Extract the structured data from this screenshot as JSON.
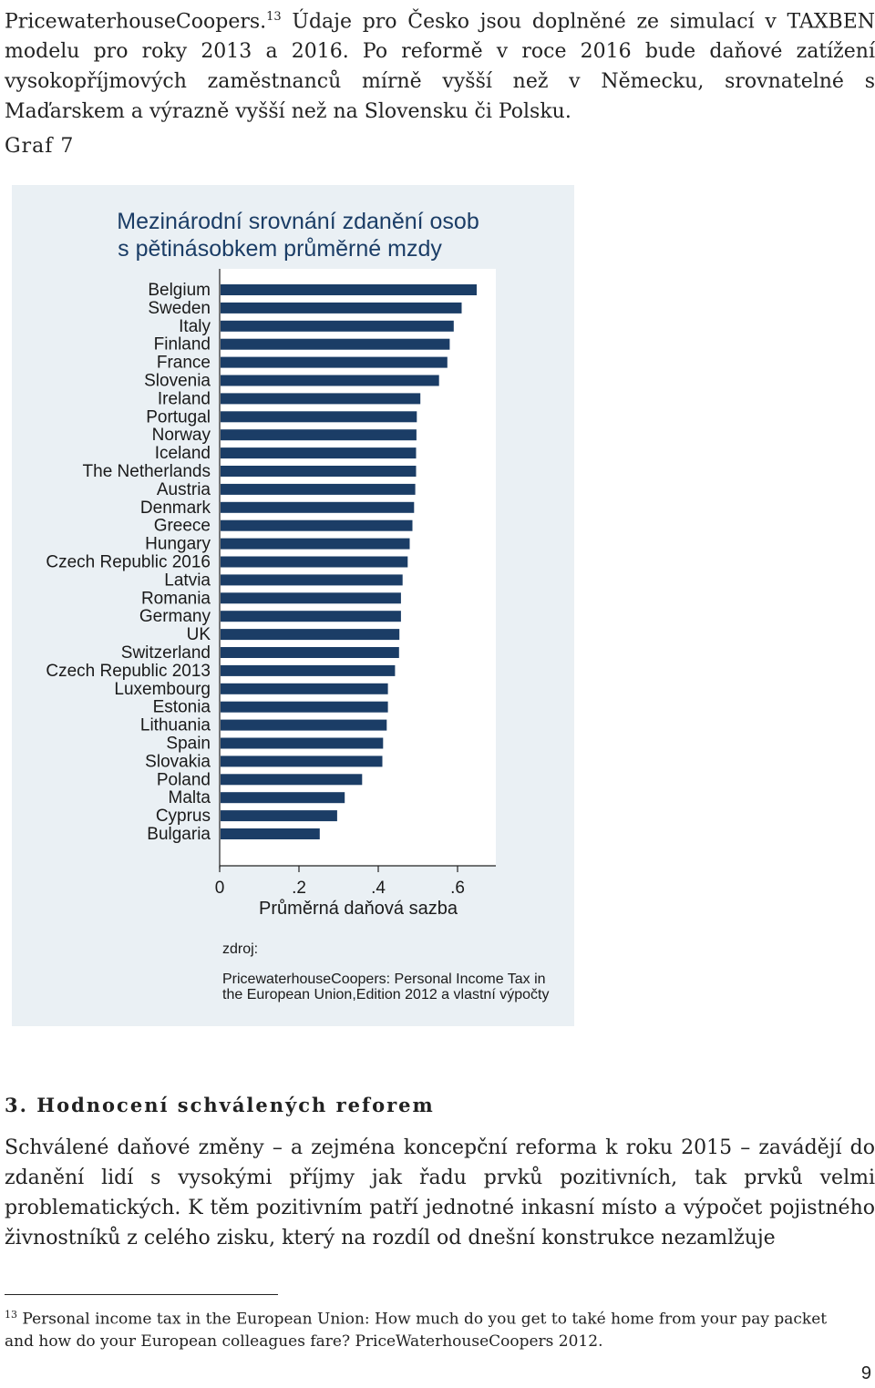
{
  "intro": {
    "lead": "PricewaterhouseCoopers.",
    "footnote_ref": "13",
    "text": "Údaje pro Česko jsou doplněné ze simulací v TAXBEN modelu pro roky 2013 a 2016. Po reformě v roce 2016 bude daňové zatížení vysokopříjmových zaměstnanců mírně vyšší než v Německu, srovnatelné s Maďarskem a výrazně vyšší než na Slovensku či Polsku."
  },
  "graf_label": "Graf 7",
  "colors": {
    "bar": "#1b3d66",
    "panel": "#eaf0f4",
    "title": "#1b3d66"
  },
  "chart_data": {
    "type": "bar",
    "orientation": "horizontal",
    "title_lines": [
      "Mezinárodní srovnání zdanění osob",
      "s pětinásobkem průměrné mzdy"
    ],
    "categories": [
      "Belgium",
      "Sweden",
      "Italy",
      "Finland",
      "France",
      "Slovenia",
      "Ireland",
      "Portugal",
      "Norway",
      "Iceland",
      "The Netherlands",
      "Austria",
      "Denmark",
      "Greece",
      "Hungary",
      "Czech Republic 2016",
      "Latvia",
      "Romania",
      "Germany",
      "UK",
      "Switzerland",
      "Czech Republic 2013",
      "Luxembourg",
      "Estonia",
      "Lithuania",
      "Spain",
      "Slovakia",
      "Poland",
      "Malta",
      "Cyprus",
      "Bulgaria"
    ],
    "values": [
      0.646,
      0.608,
      0.588,
      0.578,
      0.572,
      0.551,
      0.504,
      0.495,
      0.494,
      0.493,
      0.493,
      0.491,
      0.488,
      0.484,
      0.477,
      0.472,
      0.459,
      0.455,
      0.455,
      0.451,
      0.45,
      0.44,
      0.422,
      0.422,
      0.419,
      0.41,
      0.408,
      0.357,
      0.313,
      0.294,
      0.25
    ],
    "xlim": [
      0,
      0.7
    ],
    "xticks": [
      0,
      0.2,
      0.4,
      0.6
    ],
    "xtick_labels": [
      "0",
      ".2",
      ".4",
      ".6"
    ],
    "xlabel": "Průměrná daňová sazba",
    "source_label": "zdroj:",
    "source_lines": [
      "PricewaterhouseCoopers: Personal Income Tax in",
      "the European Union,Edition 2012 a vlastní výpočty"
    ],
    "grid": false,
    "legend": "none"
  },
  "section": {
    "title": "3. Hodnocení schválených reforem",
    "body": "Schválené daňové změny – a zejména koncepční reforma k roku 2015 – zavádějí do zdanění lidí s vysokými příjmy jak řadu prvků pozitivních, tak prvků velmi problematických. K těm pozitivním patří jednotné inkasní místo a výpočet pojistného živnostníků z celého zisku, který na rozdíl od dnešní konstrukce nezamlžuje"
  },
  "footnote": {
    "number": "13",
    "text": "Personal income tax in the European Union: How much do you get to také home from your pay packet and how do your European colleagues fare? PriceWaterhouseCoopers 2012."
  },
  "page_number": "9"
}
